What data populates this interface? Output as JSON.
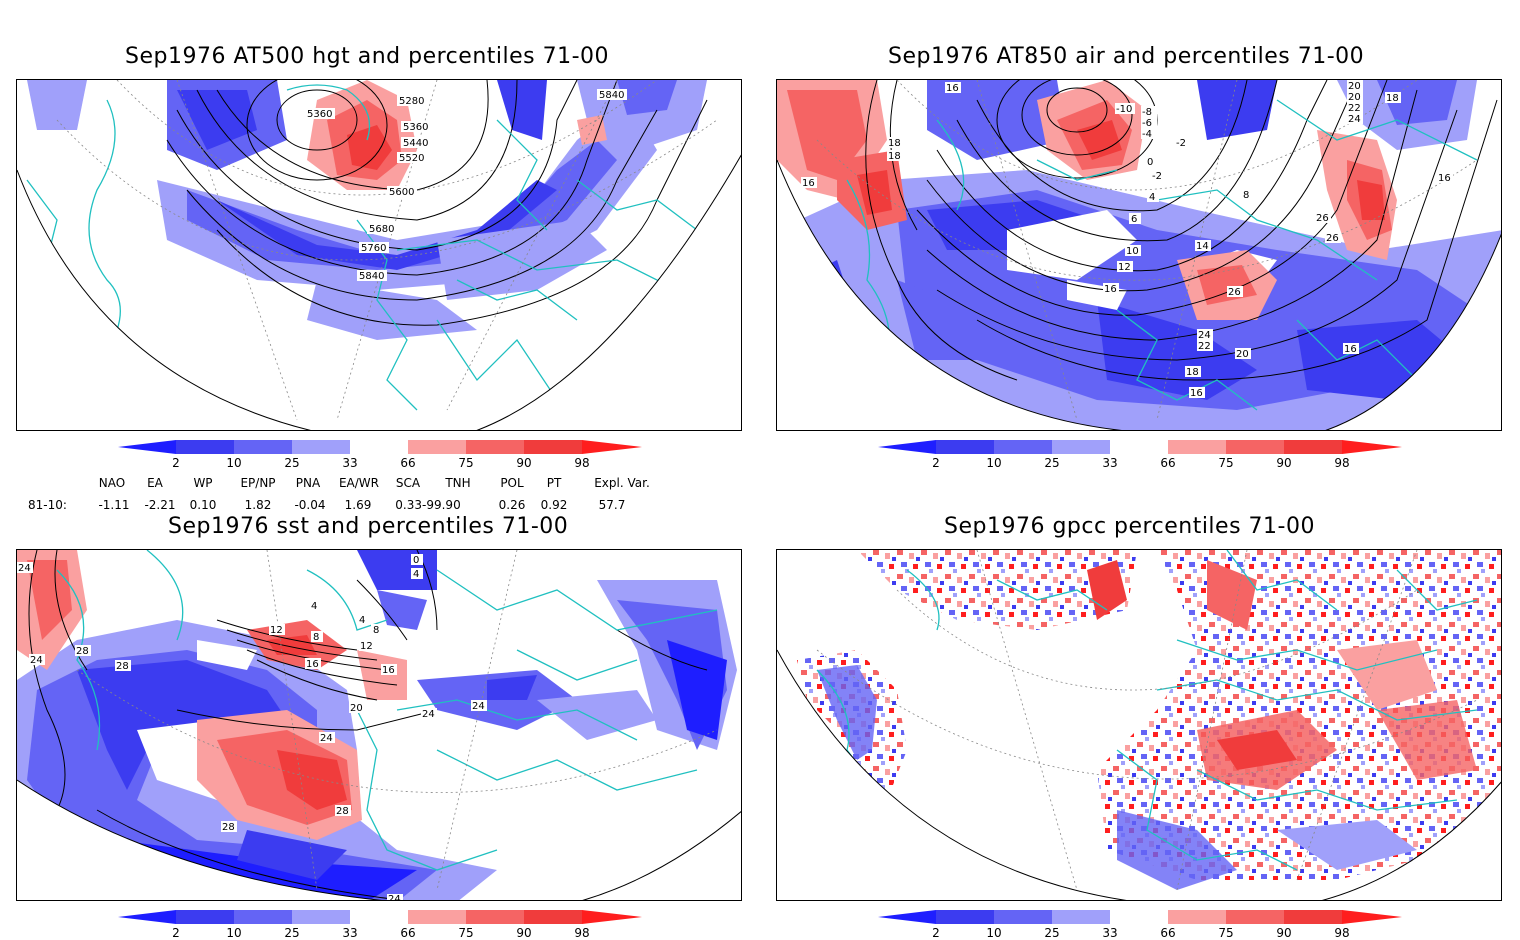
{
  "panels": [
    {
      "title": "Sep1976 AT500 hgt and percentiles 71-00",
      "contour_labels": [
        "5280",
        "5360",
        "5360",
        "5440",
        "5520",
        "5600",
        "5680",
        "5760",
        "5840",
        "5840"
      ]
    },
    {
      "title": "Sep1976 AT850 air and percentiles 71-00",
      "contour_labels": [
        "16",
        "18",
        "18",
        "16",
        "-10",
        "-8",
        "-6",
        "-4",
        "-2",
        "0",
        "-2",
        "4",
        "6",
        "8",
        "10",
        "12",
        "14",
        "16",
        "20",
        "20",
        "22",
        "24",
        "26",
        "26",
        "26",
        "24",
        "22",
        "20",
        "18",
        "16",
        "16",
        "16",
        "18"
      ]
    },
    {
      "title": "Sep1976 sst and percentiles 71-00",
      "contour_labels": [
        "24",
        "24",
        "28",
        "28",
        "12",
        "8",
        "4",
        "4",
        "8",
        "12",
        "16",
        "16",
        "20",
        "24",
        "24",
        "24",
        "28",
        "28",
        "24",
        "0",
        "4"
      ]
    },
    {
      "title": "Sep1976 gpcc percentiles 71-00",
      "contour_labels": []
    }
  ],
  "colorbar": {
    "ticks": [
      "2",
      "10",
      "25",
      "33",
      "66",
      "75",
      "90",
      "98"
    ],
    "colors": {
      "dark_blue": "#1e1eff",
      "blue": "#3c3cf0",
      "mid_blue": "#6464f5",
      "light_blue": "#a0a0fa",
      "white": "#ffffff",
      "light_red": "#faa0a0",
      "mid_red": "#f56464",
      "red": "#f03c3c",
      "dark_red": "#ff1e1e"
    }
  },
  "indices": {
    "headers": [
      "NAO",
      "EA",
      "WP",
      "EP/NP",
      "PNA",
      "EA/WR",
      "SCA",
      "TNH",
      "POL",
      "PT",
      "Expl. Var."
    ],
    "row_label": "81-10:",
    "values": [
      "-1.11",
      "-2.21",
      "0.10",
      "1.82",
      "-0.04",
      "1.69",
      "0.33-99.90",
      "",
      "0.26",
      "0.92",
      "57.7"
    ]
  },
  "coast_color": "#20c0c0"
}
